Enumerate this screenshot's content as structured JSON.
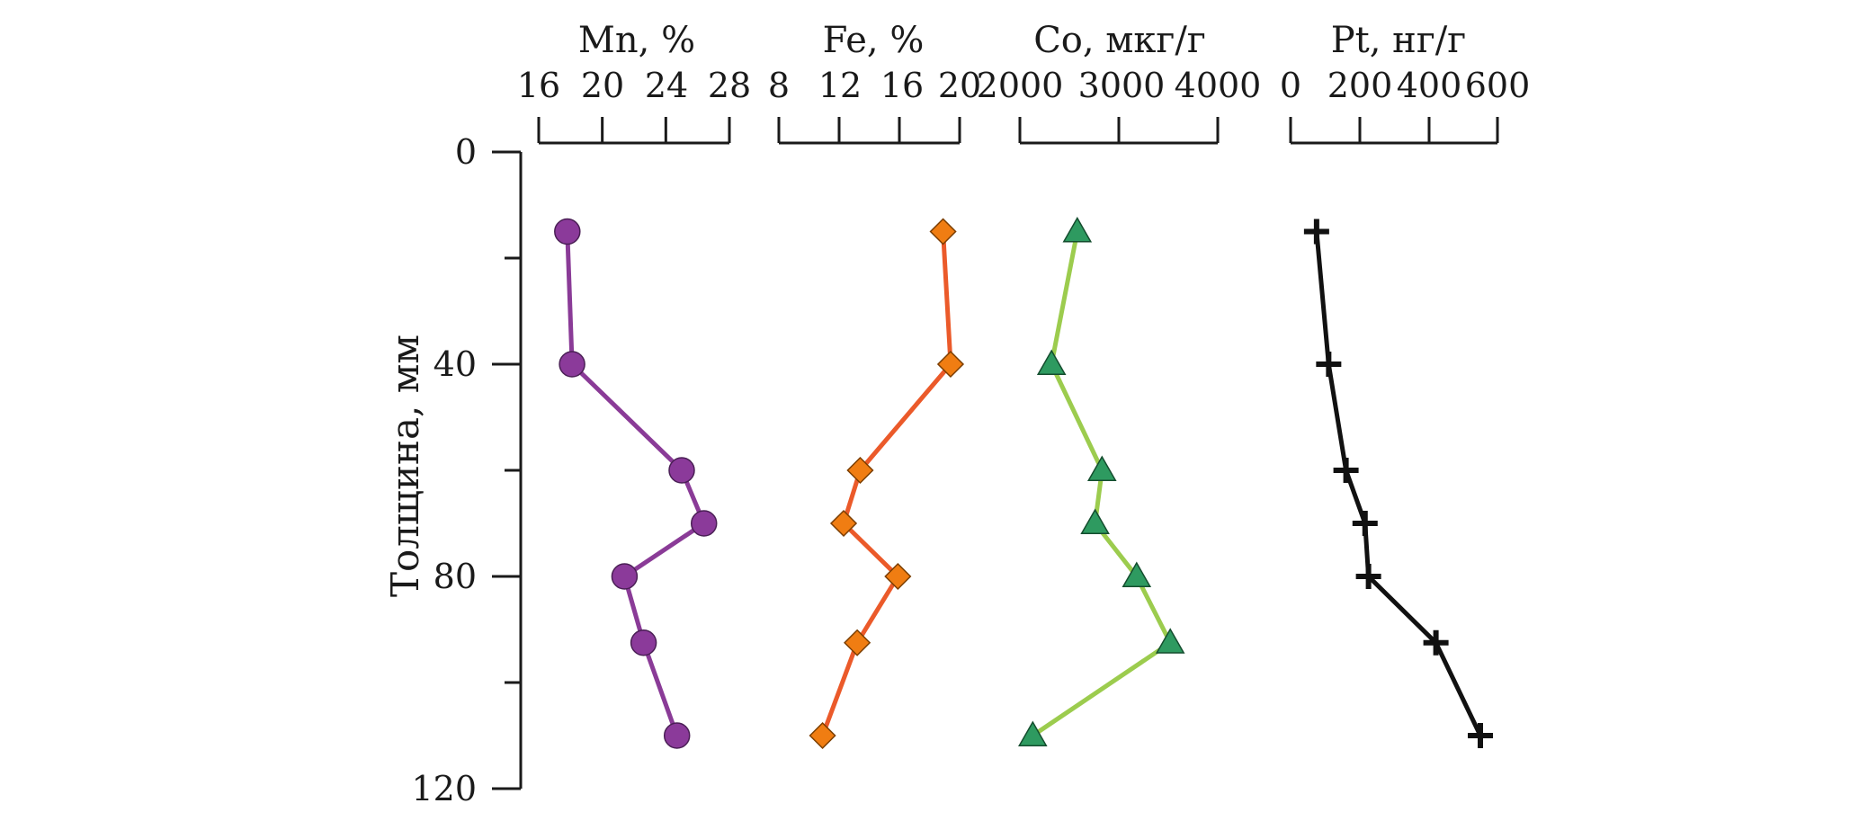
{
  "chart_data": {
    "type": "line",
    "depth_axis": {
      "label": "Толщина, мм",
      "ticks": [
        0,
        40,
        80,
        120
      ],
      "range": [
        0,
        120
      ],
      "inverted": true
    },
    "depth_values": [
      15,
      40,
      60,
      70,
      80,
      92.5,
      110
    ],
    "panels": [
      {
        "id": "mn",
        "title": "Mn, %",
        "range": [
          16,
          28
        ],
        "ticks": [
          16,
          20,
          24,
          28
        ],
        "tick_labels": [
          "16",
          "20",
          "24",
          "28"
        ],
        "scale": "linear",
        "marker": "circle",
        "line_color": "#8a3b97",
        "marker_color": "#8b3a9a",
        "values": [
          17.8,
          18.1,
          25.0,
          26.4,
          21.4,
          22.6,
          24.7
        ]
      },
      {
        "id": "fe",
        "title": "Fe, %",
        "range": [
          8,
          20
        ],
        "ticks": [
          8,
          12,
          16,
          20
        ],
        "tick_labels": [
          "8",
          "12",
          "16",
          "20"
        ],
        "scale": "linear",
        "marker": "diamond",
        "line_color": "#eb5a2a",
        "marker_color": "#f07d12",
        "values": [
          18.9,
          19.4,
          13.4,
          12.3,
          15.9,
          13.2,
          10.9
        ]
      },
      {
        "id": "co",
        "title": "Co, мкг/г",
        "range": [
          2000,
          4000
        ],
        "ticks": [
          2000,
          3000,
          4000
        ],
        "tick_labels": [
          "2000",
          "3000",
          "4000"
        ],
        "scale": "linear",
        "marker": "triangle",
        "line_color": "#9ccc4e",
        "marker_color": "#2e9a60",
        "values": [
          2580,
          2320,
          2830,
          2760,
          3180,
          3520,
          2130
        ]
      },
      {
        "id": "pt",
        "title": "Pt, нг/г",
        "range": [
          0,
          600
        ],
        "ticks": [
          0,
          200,
          400,
          600
        ],
        "tick_labels": [
          "0",
          "200",
          "400",
          "600"
        ],
        "scale": "piecewise",
        "scale_breaks": [
          0,
          200,
          400,
          600
        ],
        "marker": "plus",
        "line_color": "#111111",
        "marker_color": "#111111",
        "values": [
          75,
          110,
          160,
          215,
          225,
          420,
          550
        ]
      }
    ]
  }
}
